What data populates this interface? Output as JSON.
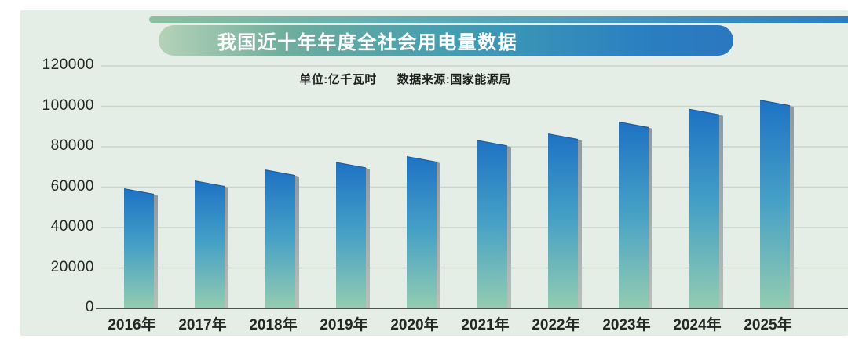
{
  "banner": {
    "title": "我国近十年年度全社会用电量数据",
    "text_color": "#ffffff",
    "gradient": [
      "#b5d2b8",
      "#3e9bb4",
      "#2b77c0"
    ]
  },
  "top_strip": {
    "gradient": [
      "#8cbf9d",
      "#56a8bb",
      "#2b7ec4"
    ]
  },
  "chart_data": {
    "type": "bar",
    "title": "我国近十年年度全社会用电量数据",
    "unit_label": "单位:亿千瓦时",
    "source_label": "数据来源:国家能源局",
    "categories": [
      "2016年",
      "2017年",
      "2018年",
      "2019年",
      "2020年",
      "2021年",
      "2022年",
      "2023年",
      "2024年",
      "2025年"
    ],
    "values": [
      59198,
      63077,
      68449,
      72255,
      75110,
      83128,
      86372,
      92241,
      98521,
      103000
    ],
    "xlabel": "",
    "ylabel": "",
    "ylim": [
      0,
      120000
    ],
    "ytick_step": 20000,
    "ytick_labels": [
      "0",
      "20000",
      "40000",
      "60000",
      "80000",
      "100000",
      "120000"
    ],
    "grid": true,
    "legend": "none",
    "colors": {
      "panel_bg": "#e4eee6",
      "bar_gradient_top": "#1e72c4",
      "bar_gradient_mid": "#45a0c6",
      "bar_gradient_bottom": "#93ccb1",
      "bar_top_edge": "#1b5ca0",
      "bar_side_top": "#8d9aa2",
      "bar_side_bottom": "#b7c0ba",
      "gridline": "#c8d4ca",
      "axis": "#4c5550",
      "label": "#232825"
    }
  }
}
